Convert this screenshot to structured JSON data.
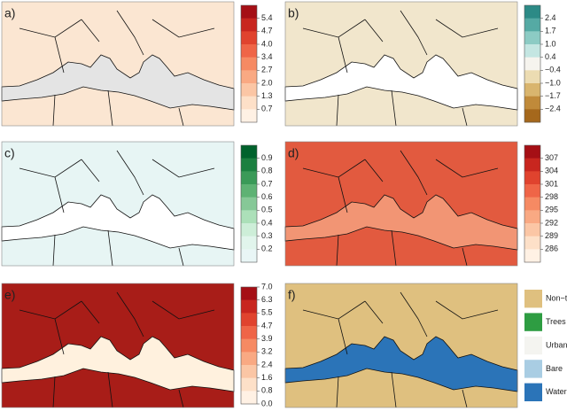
{
  "panels": [
    {
      "label": "a)",
      "land": "#fbe6d2",
      "sea": "#e4e4e4",
      "colorbar": {
        "ticks": [
          "5.4",
          "4.7",
          "4.0",
          "3.4",
          "2.7",
          "2.0",
          "1.3",
          "0.7"
        ],
        "colors": [
          "#a50f15",
          "#c8261f",
          "#e0432e",
          "#ef6547",
          "#f68a63",
          "#f9a983",
          "#fbc6a5",
          "#fde0c8",
          "#fff1e4"
        ]
      }
    },
    {
      "label": "b)",
      "land": "#f1e6cc",
      "sea": "#ffffff",
      "colorbar": {
        "ticks": [
          "2.4",
          "1.7",
          "1.0",
          "0.4",
          "−0.4",
          "−1.0",
          "−1.7",
          "−2.4"
        ],
        "colors": [
          "#2c8a86",
          "#55aaa4",
          "#8ccbc4",
          "#c4e6e2",
          "#f6f4ee",
          "#ecdcb2",
          "#d9b56e",
          "#c08a3a",
          "#a5681c"
        ]
      }
    },
    {
      "label": "c)",
      "land": "#e7f5f4",
      "sea": "#ffffff",
      "colorbar": {
        "ticks": [
          "0.9",
          "0.8",
          "0.7",
          "0.6",
          "0.5",
          "0.4",
          "0.3",
          "0.2"
        ],
        "colors": [
          "#00622c",
          "#1b8040",
          "#3a9a58",
          "#5eb274",
          "#86c897",
          "#ace0b9",
          "#cdeed8",
          "#e1f5ec",
          "#e9f6f6"
        ]
      }
    },
    {
      "label": "d)",
      "land": "#e25a3f",
      "sea": "#f29574",
      "colorbar": {
        "ticks": [
          "307",
          "304",
          "301",
          "298",
          "295",
          "292",
          "289",
          "286"
        ],
        "colors": [
          "#a50f15",
          "#c8261f",
          "#e0432e",
          "#ef6547",
          "#f68a63",
          "#f9a983",
          "#fbc6a5",
          "#fde0c8",
          "#fff1e4"
        ]
      }
    },
    {
      "label": "e)",
      "land": "#a81d18",
      "sea": "#fff1de",
      "colorbar": {
        "ticks": [
          "7.0",
          "6.3",
          "5.5",
          "4.7",
          "3.9",
          "3.2",
          "2.4",
          "1.6",
          "0.8",
          "0.0"
        ],
        "colors": [
          "#a50f15",
          "#c8261f",
          "#e0432e",
          "#ef6547",
          "#f68a63",
          "#f9a983",
          "#fbc6a5",
          "#fde0c8",
          "#fff1e4"
        ]
      }
    },
    {
      "label": "f)",
      "land": "#dfc07f",
      "sea": "#2b74b8",
      "legend": [
        {
          "name": "Non−tree",
          "color": "#dfc07f"
        },
        {
          "name": "Trees",
          "color": "#2e9d42"
        },
        {
          "name": "Urban",
          "color": "#f4f4f0"
        },
        {
          "name": "Bare",
          "color": "#a9cde3"
        },
        {
          "name": "Water",
          "color": "#2b74b8"
        }
      ]
    }
  ]
}
